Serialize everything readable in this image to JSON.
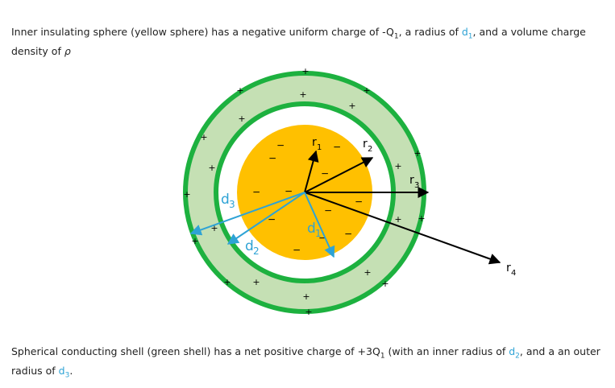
{
  "top_caption": [
    "Inner insulating sphere (yellow sphere) has a negative uniform charge of -Q",
    "1",
    ", a radius of ",
    "d",
    "1",
    ", and a volume charge density of ",
    "ρ"
  ],
  "bottom_caption": [
    "Spherical conducting shell (green shell) has a net positive charge of +3Q",
    "1",
    " (with an inner radius of ",
    "d",
    "2",
    ", and a an outer radius of ",
    "d",
    "3",
    "."
  ],
  "labels": [
    {
      "main": "r",
      "sub": "1"
    },
    {
      "main": "r",
      "sub": "2"
    },
    {
      "main": "r",
      "sub": "3"
    },
    {
      "main": "r",
      "sub": "4"
    },
    {
      "main": "d",
      "sub": "1"
    },
    {
      "main": "d",
      "sub": "2"
    },
    {
      "main": "d",
      "sub": "3"
    }
  ],
  "symbols": {
    "plus": "+",
    "minus": "−"
  }
}
